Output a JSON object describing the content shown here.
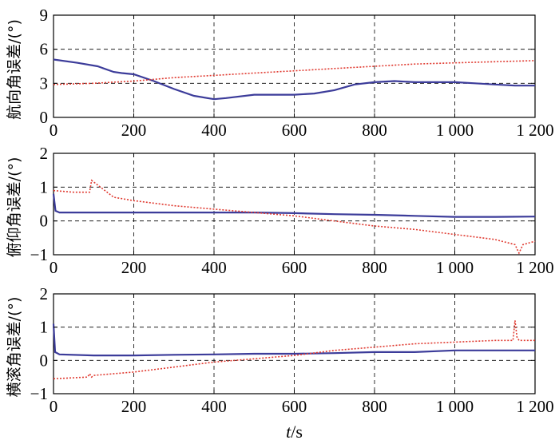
{
  "chart_data": [
    {
      "type": "line",
      "ylabel": "航向角误差/(°)",
      "xlim": [
        0,
        1200
      ],
      "ylim": [
        0,
        9
      ],
      "xticks": [
        0,
        200,
        400,
        600,
        800,
        1000,
        1200
      ],
      "xtick_labels": [
        "0",
        "200",
        "400",
        "600",
        "800",
        "1 000",
        "1 200"
      ],
      "yticks": [
        0,
        3,
        6,
        9
      ],
      "ytick_labels": [
        "0",
        "3",
        "6",
        "9"
      ],
      "grid": true,
      "series": [
        {
          "color": "#3c3c9a",
          "style": "solid",
          "x": [
            0,
            60,
            110,
            150,
            170,
            200,
            250,
            300,
            350,
            400,
            430,
            500,
            550,
            600,
            650,
            700,
            750,
            800,
            850,
            900,
            950,
            1000,
            1050,
            1100,
            1150,
            1200
          ],
          "y": [
            5.1,
            4.8,
            4.5,
            4.0,
            3.9,
            3.8,
            3.2,
            2.5,
            1.9,
            1.6,
            1.7,
            2.0,
            2.0,
            2.0,
            2.1,
            2.4,
            2.9,
            3.1,
            3.2,
            3.1,
            3.1,
            3.1,
            3.0,
            2.9,
            2.8,
            2.8
          ]
        },
        {
          "color": "#e03a30",
          "style": "dotted",
          "x": [
            0,
            100,
            200,
            300,
            400,
            500,
            600,
            700,
            800,
            900,
            1000,
            1100,
            1200
          ],
          "y": [
            2.9,
            3.0,
            3.2,
            3.5,
            3.7,
            3.9,
            4.1,
            4.3,
            4.5,
            4.7,
            4.8,
            4.9,
            5.0
          ]
        }
      ]
    },
    {
      "type": "line",
      "ylabel": "俯仰角误差/(°)",
      "xlim": [
        0,
        1200
      ],
      "ylim": [
        -1,
        2
      ],
      "xticks": [
        0,
        200,
        400,
        600,
        800,
        1000,
        1200
      ],
      "xtick_labels": [
        "0",
        "200",
        "400",
        "600",
        "800",
        "1 000",
        "1 200"
      ],
      "yticks": [
        -1,
        0,
        1,
        2
      ],
      "ytick_labels": [
        "−1",
        "0",
        "1",
        "2"
      ],
      "grid": true,
      "series": [
        {
          "color": "#3c3c9a",
          "style": "solid",
          "x": [
            0,
            5,
            15,
            100,
            200,
            300,
            400,
            500,
            600,
            700,
            800,
            900,
            1000,
            1100,
            1200
          ],
          "y": [
            0.8,
            0.3,
            0.25,
            0.25,
            0.25,
            0.25,
            0.25,
            0.25,
            0.23,
            0.2,
            0.18,
            0.15,
            0.12,
            0.12,
            0.13
          ]
        },
        {
          "color": "#e03a30",
          "style": "dotted",
          "x": [
            0,
            50,
            90,
            95,
            150,
            200,
            300,
            400,
            500,
            600,
            700,
            800,
            900,
            1000,
            1100,
            1150,
            1160,
            1170,
            1200
          ],
          "y": [
            0.9,
            0.85,
            0.85,
            1.2,
            0.7,
            0.6,
            0.45,
            0.35,
            0.25,
            0.15,
            0.0,
            -0.15,
            -0.25,
            -0.4,
            -0.55,
            -0.7,
            -0.95,
            -0.7,
            -0.6
          ]
        }
      ]
    },
    {
      "type": "line",
      "ylabel": "横滚角误差/(°)",
      "xlabel": "t/s",
      "xlim": [
        0,
        1200
      ],
      "ylim": [
        -1,
        2
      ],
      "xticks": [
        0,
        200,
        400,
        600,
        800,
        1000,
        1200
      ],
      "xtick_labels": [
        "0",
        "200",
        "400",
        "600",
        "800",
        "1 000",
        "1 200"
      ],
      "yticks": [
        -1,
        0,
        1,
        2
      ],
      "ytick_labels": [
        "−1",
        "0",
        "1",
        "2"
      ],
      "grid": true,
      "series": [
        {
          "color": "#3c3c9a",
          "style": "solid",
          "x": [
            0,
            4,
            15,
            100,
            200,
            300,
            400,
            500,
            600,
            700,
            800,
            900,
            1000,
            1100,
            1200
          ],
          "y": [
            1.1,
            0.25,
            0.18,
            0.15,
            0.15,
            0.17,
            0.18,
            0.2,
            0.2,
            0.22,
            0.25,
            0.25,
            0.3,
            0.3,
            0.3
          ]
        },
        {
          "color": "#e03a30",
          "style": "dotted",
          "x": [
            0,
            85,
            90,
            95,
            100,
            200,
            300,
            400,
            500,
            600,
            700,
            800,
            900,
            1000,
            1100,
            1145,
            1150,
            1155,
            1160,
            1200
          ],
          "y": [
            -0.55,
            -0.5,
            -0.4,
            -0.5,
            -0.45,
            -0.35,
            -0.2,
            -0.05,
            0.05,
            0.15,
            0.3,
            0.4,
            0.5,
            0.55,
            0.6,
            0.6,
            1.2,
            0.7,
            0.6,
            0.6
          ]
        }
      ]
    }
  ]
}
